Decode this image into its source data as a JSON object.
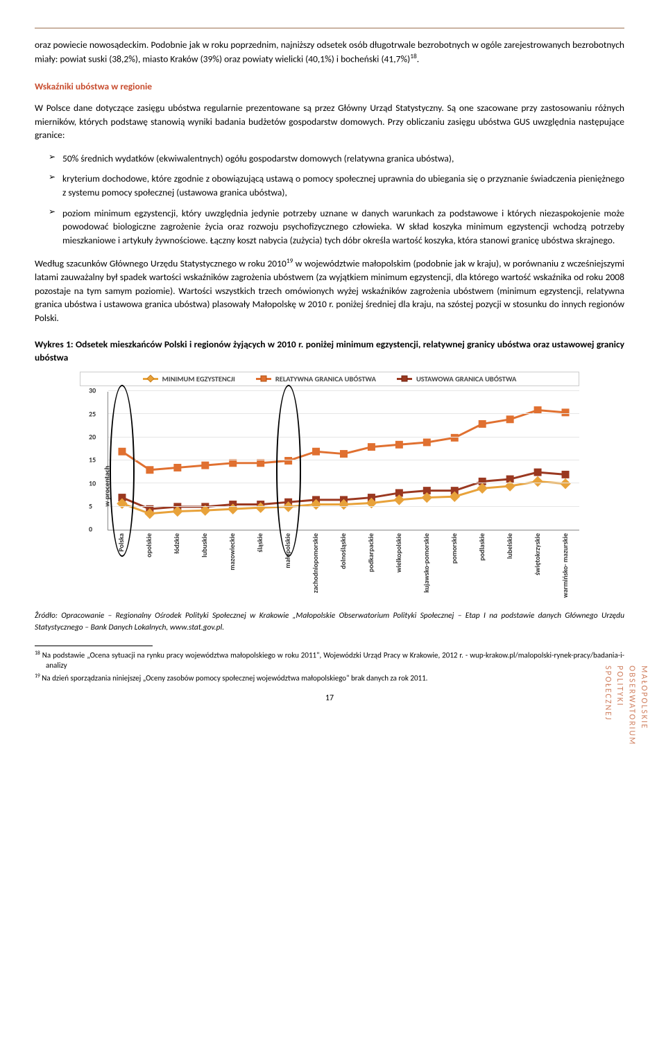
{
  "top_para": "oraz powiecie nowosądeckim. Podobnie jak w roku poprzednim, najniższy odsetek osób długotrwale bezrobotnych w ogóle zarejestrowanych bezrobotnych miały: powiat suski (38,2%), miasto Kraków (39%) oraz powiaty wielicki (40,1%) i bocheński (41,7%)",
  "top_para_fn": "18",
  "section_heading": "Wskaźniki ubóstwa w regionie",
  "para2": "W Polsce dane dotyczące zasięgu ubóstwa regularnie prezentowane są przez Główny Urząd Statystyczny. Są one szacowane przy zastosowaniu różnych mierników, których podstawę stanowią wyniki badania budżetów gospodarstw domowych. Przy obliczaniu zasięgu ubóstwa GUS uwzględnia następujące granice:",
  "bullets": [
    "50% średnich wydatków (ekwiwalentnych) ogółu gospodarstw domowych (relatywna granica ubóstwa),",
    "kryterium dochodowe, które zgodnie z obowiązującą ustawą o pomocy społecznej uprawnia do ubiegania się o przyznanie świadczenia pieniężnego z systemu pomocy społecznej (ustawowa granica ubóstwa),",
    "poziom minimum egzystencji, który uwzględnia jedynie potrzeby uznane w danych warunkach za podstawowe i których niezaspokojenie może powodować biologiczne zagrożenie życia oraz rozwoju psychofizycznego człowieka. W skład koszyka minimum egzystencji wchodzą potrzeby mieszkaniowe i artykuły żywnościowe. Łączny koszt nabycia (zużycia) tych dóbr określa wartość koszyka, która stanowi granicę ubóstwa skrajnego."
  ],
  "para3a": "Według szacunków Głównego Urzędu Statystycznego w roku 2010",
  "para3_fn": "19",
  "para3b": " w województwie małopolskim (podobnie jak w kraju), w porównaniu z wcześniejszymi latami zauważalny był spadek wartości wskaźników zagrożenia ubóstwem (za wyjątkiem minimum egzystencji, dla którego wartość wskaźnika od roku 2008 pozostaje na tym samym poziomie). Wartości wszystkich trzech omówionych wyżej wskaźników zagrożenia ubóstwem (minimum egzystencji, relatywna granica ubóstwa i ustawowa granica ubóstwa) plasowały Małopolskę w 2010 r. poniżej średniej dla kraju, na szóstej pozycji w stosunku do innych regionów Polski.",
  "fig_title": "Wykres 1: Odsetek mieszkańców Polski i regionów żyjących w 2010 r. poniżej minimum egzystencji, relatywnej granicy ubóstwa oraz ustawowej granicy ubóstwa",
  "chart": {
    "ylabel": "w procentach",
    "legend": [
      {
        "label": "MINIMUM EGZYSTENCJI",
        "color": "#e8a23a",
        "marker": "diamond"
      },
      {
        "label": "RELATYWNA GRANICA UBÓSTWA",
        "color": "#e07030",
        "marker": "square"
      },
      {
        "label": "USTAWOWA GRANICA UBÓSTWA",
        "color": "#9a3820",
        "marker": "square"
      }
    ],
    "ylim": [
      0,
      30
    ],
    "ytick_step": 5,
    "yticks": [
      0,
      5,
      10,
      15,
      20,
      25,
      30
    ],
    "categories": [
      "Polska",
      "opolskie",
      "łódzkie",
      "lubuskie",
      "mazowieckie",
      "śląskie",
      "małopolskie",
      "zachodniopomorskie",
      "dolnośląskie",
      "podkarpackie",
      "wielkopolskie",
      "kujawsko-pomorskie",
      "pomorskie",
      "podlaskie",
      "lubelskie",
      "świętokrzyskie",
      "warmińsko- mazurskie"
    ],
    "series": {
      "minimum": [
        5.7,
        3.5,
        4.0,
        4.2,
        4.5,
        4.8,
        5.0,
        5.5,
        5.5,
        5.8,
        6.5,
        7.0,
        7.2,
        9.0,
        9.5,
        10.5,
        10.0
      ],
      "relatywna": [
        17.0,
        13.0,
        13.5,
        14.0,
        14.5,
        14.5,
        15.0,
        17.0,
        16.5,
        18.0,
        18.5,
        19.0,
        20.0,
        23.0,
        24.0,
        26.0,
        25.5
      ],
      "ustawowa": [
        7.0,
        4.5,
        5.0,
        5.0,
        5.5,
        5.5,
        6.0,
        6.5,
        6.5,
        7.0,
        8.0,
        8.5,
        8.5,
        10.5,
        11.0,
        12.5,
        12.0
      ]
    },
    "highlight_indices": [
      0,
      6
    ],
    "grid_color": "#e6e6e6",
    "axis_color": "#888888",
    "background": "#ffffff",
    "marker_size": 11
  },
  "source": "Źródło: Opracowanie – Regionalny Ośrodek Polityki Społecznej w Krakowie „Małopolskie Obserwatorium Polityki Społecznej – Etap I na podstawie danych Głównego Urzędu Statystycznego – Bank Danych Lokalnych, www.stat.gov.pl.",
  "footnotes": [
    {
      "num": "18",
      "text": "Na podstawie „Ocena sytuacji na rynku pracy województwa małopolskiego w roku 2011\", Wojewódzki Urząd Pracy w Krakowie, 2012 r. - wup-krakow.pl/malopolski-rynek-pracy/badania-i-analizy"
    },
    {
      "num": "19",
      "text": "Na dzień sporządzania niniejszej „Oceny zasobów pomocy społecznej województwa małopolskiego\" brak danych za rok 2011."
    }
  ],
  "page_number": "17",
  "side_label": "MAŁOPOLSKIE OBSERWATORIUM POLITYKI SPOŁECZNEJ"
}
